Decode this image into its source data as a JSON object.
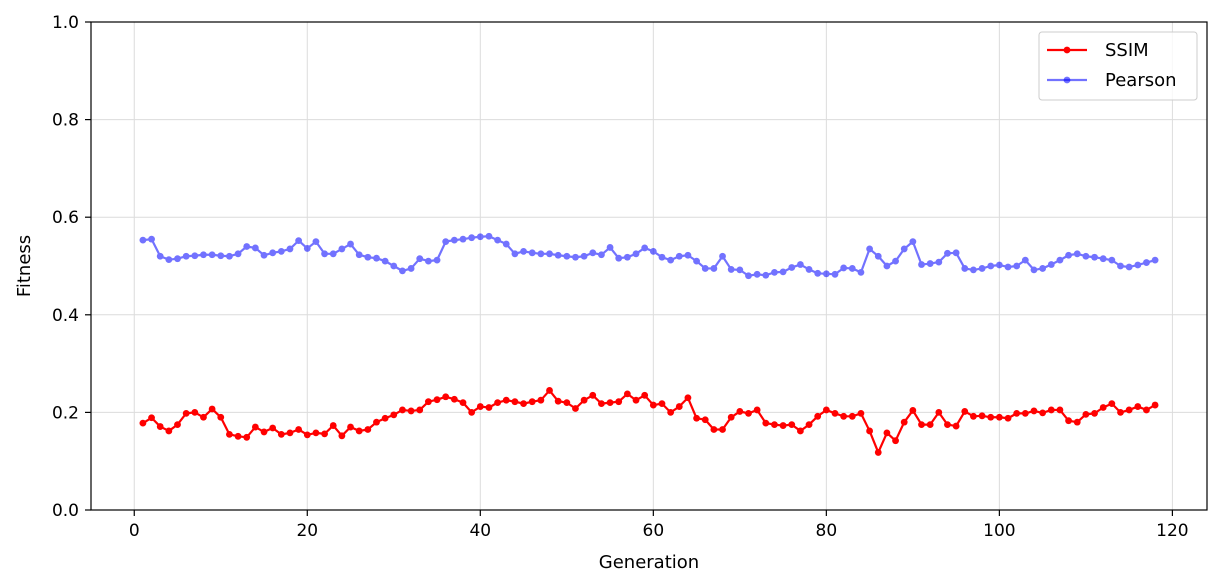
{
  "chart_data": {
    "type": "line",
    "xlabel": "Generation",
    "ylabel": "Fitness",
    "xlim": [
      -5,
      124
    ],
    "ylim": [
      0,
      1
    ],
    "xticks": [
      0,
      20,
      40,
      60,
      80,
      100,
      120
    ],
    "yticks": [
      0.0,
      0.2,
      0.4,
      0.6,
      0.8,
      1.0
    ],
    "xtick_labels": [
      "0",
      "20",
      "40",
      "60",
      "80",
      "100",
      "120"
    ],
    "ytick_labels": [
      "0.0",
      "0.2",
      "0.4",
      "0.6",
      "0.8",
      "1.0"
    ],
    "grid": true,
    "legend_position": "top-right",
    "x": [
      1,
      2,
      3,
      4,
      5,
      6,
      7,
      8,
      9,
      10,
      11,
      12,
      13,
      14,
      15,
      16,
      17,
      18,
      19,
      20,
      21,
      22,
      23,
      24,
      25,
      26,
      27,
      28,
      29,
      30,
      31,
      32,
      33,
      34,
      35,
      36,
      37,
      38,
      39,
      40,
      41,
      42,
      43,
      44,
      45,
      46,
      47,
      48,
      49,
      50,
      51,
      52,
      53,
      54,
      55,
      56,
      57,
      58,
      59,
      60,
      61,
      62,
      63,
      64,
      65,
      66,
      67,
      68,
      69,
      70,
      71,
      72,
      73,
      74,
      75,
      76,
      77,
      78,
      79,
      80,
      81,
      82,
      83,
      84,
      85,
      86,
      87,
      88,
      89,
      90,
      91,
      92,
      93,
      94,
      95,
      96,
      97,
      98,
      99,
      100,
      101,
      102,
      103,
      104,
      105,
      106,
      107,
      108,
      109,
      110,
      111,
      112,
      113,
      114,
      115,
      116,
      117,
      118
    ],
    "series": [
      {
        "name": "SSIM",
        "color": "#ff0000",
        "opacity": 1.0,
        "values": [
          0.178,
          0.189,
          0.171,
          0.162,
          0.175,
          0.198,
          0.2,
          0.19,
          0.207,
          0.19,
          0.155,
          0.151,
          0.149,
          0.17,
          0.16,
          0.168,
          0.155,
          0.158,
          0.165,
          0.154,
          0.158,
          0.156,
          0.173,
          0.152,
          0.17,
          0.162,
          0.165,
          0.18,
          0.188,
          0.195,
          0.205,
          0.203,
          0.205,
          0.222,
          0.226,
          0.232,
          0.227,
          0.22,
          0.2,
          0.212,
          0.21,
          0.22,
          0.225,
          0.222,
          0.218,
          0.222,
          0.225,
          0.245,
          0.223,
          0.22,
          0.208,
          0.225,
          0.235,
          0.218,
          0.22,
          0.222,
          0.238,
          0.225,
          0.235,
          0.215,
          0.218,
          0.2,
          0.212,
          0.23,
          0.188,
          0.185,
          0.165,
          0.165,
          0.19,
          0.202,
          0.198,
          0.205,
          0.178,
          0.175,
          0.173,
          0.175,
          0.162,
          0.175,
          0.192,
          0.205,
          0.198,
          0.192,
          0.192,
          0.198,
          0.162,
          0.118,
          0.158,
          0.142,
          0.18,
          0.204,
          0.175,
          0.175,
          0.2,
          0.175,
          0.172,
          0.202,
          0.192,
          0.193,
          0.19,
          0.19,
          0.188,
          0.198,
          0.198,
          0.203,
          0.199,
          0.205,
          0.205,
          0.183,
          0.18,
          0.196,
          0.198,
          0.21,
          0.218,
          0.2,
          0.205,
          0.212,
          0.205,
          0.215
        ]
      },
      {
        "name": "Pearson",
        "color": "#0000ff",
        "opacity": 0.55,
        "values": [
          0.553,
          0.555,
          0.52,
          0.513,
          0.515,
          0.52,
          0.521,
          0.523,
          0.523,
          0.521,
          0.52,
          0.525,
          0.54,
          0.537,
          0.522,
          0.527,
          0.53,
          0.535,
          0.552,
          0.536,
          0.55,
          0.525,
          0.525,
          0.535,
          0.545,
          0.523,
          0.518,
          0.516,
          0.51,
          0.5,
          0.49,
          0.495,
          0.515,
          0.51,
          0.512,
          0.55,
          0.553,
          0.555,
          0.558,
          0.56,
          0.561,
          0.553,
          0.545,
          0.525,
          0.53,
          0.527,
          0.525,
          0.525,
          0.522,
          0.52,
          0.518,
          0.52,
          0.527,
          0.523,
          0.538,
          0.516,
          0.518,
          0.525,
          0.537,
          0.53,
          0.518,
          0.512,
          0.52,
          0.522,
          0.51,
          0.495,
          0.495,
          0.52,
          0.493,
          0.492,
          0.48,
          0.483,
          0.481,
          0.487,
          0.488,
          0.497,
          0.503,
          0.493,
          0.485,
          0.484,
          0.483,
          0.496,
          0.495,
          0.487,
          0.535,
          0.52,
          0.5,
          0.51,
          0.535,
          0.55,
          0.503,
          0.505,
          0.508,
          0.526,
          0.527,
          0.495,
          0.492,
          0.495,
          0.5,
          0.502,
          0.498,
          0.5,
          0.512,
          0.492,
          0.495,
          0.503,
          0.512,
          0.522,
          0.525,
          0.52,
          0.518,
          0.515,
          0.512,
          0.5,
          0.498,
          0.502,
          0.507,
          0.512
        ]
      }
    ]
  }
}
